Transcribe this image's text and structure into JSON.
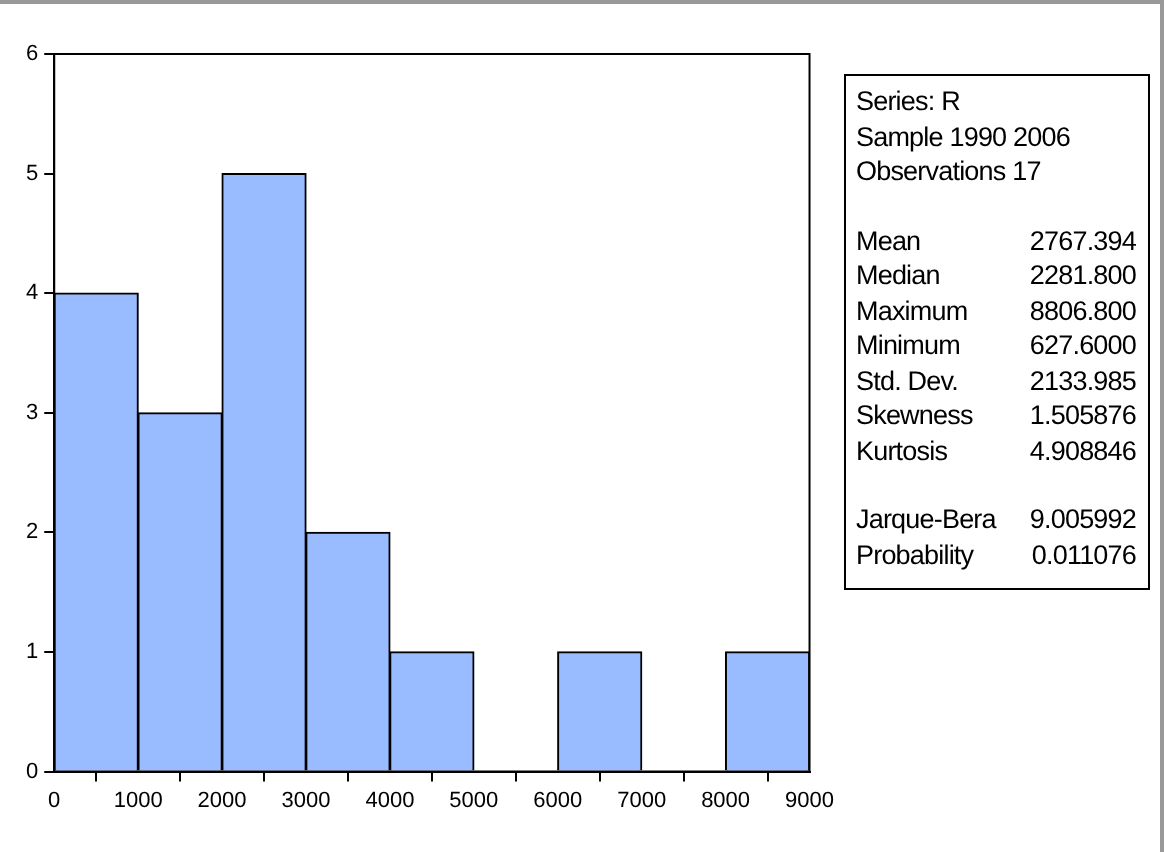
{
  "chart_data": {
    "type": "histogram",
    "bins": [
      0,
      1000,
      2000,
      3000,
      4000,
      5000,
      6000,
      7000,
      8000,
      9000
    ],
    "values": [
      4,
      3,
      5,
      2,
      1,
      0,
      1,
      0,
      1
    ],
    "color": "#99bbff",
    "xlim": [
      0,
      9000
    ],
    "xticks": [
      0,
      1000,
      2000,
      3000,
      4000,
      5000,
      6000,
      7000,
      8000,
      9000
    ],
    "ylim": [
      0,
      6
    ],
    "yticks": [
      0,
      1,
      2,
      3,
      4,
      5,
      6
    ],
    "grid": false,
    "legend": false,
    "annotations": [
      "Series: R",
      "Sample 1990 2006",
      "Observations 17",
      "Mean 2767.394",
      "Median 2281.800",
      "Maximum 8806.800",
      "Minimum 627.6000",
      "Std. Dev. 2133.985",
      "Skewness 1.505876",
      "Kurtosis 4.908846",
      "Jarque-Bera 9.005992",
      "Probability 0.011076"
    ]
  }
}
